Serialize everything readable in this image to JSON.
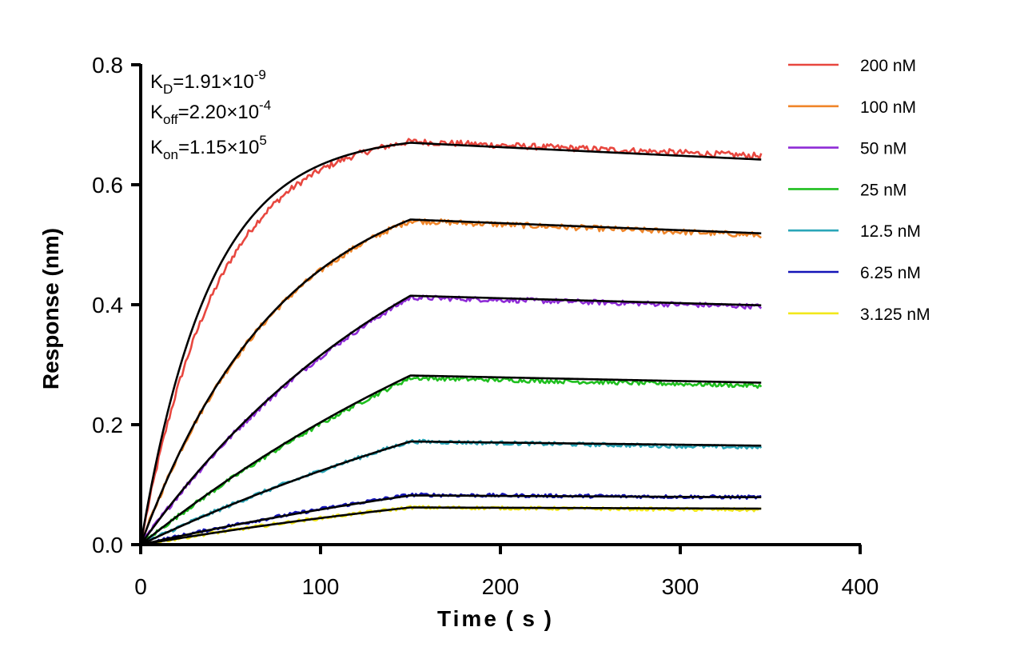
{
  "chart_data": {
    "type": "line",
    "xlabel": "Time ( s )",
    "ylabel": "Response (nm)",
    "xlim": [
      0,
      400
    ],
    "ylim": [
      0,
      0.8
    ],
    "x_ticks": [
      0,
      100,
      200,
      300,
      400
    ],
    "y_ticks": [
      0.0,
      0.2,
      0.4,
      0.6,
      0.8
    ],
    "x_tick_labels": [
      "0",
      "100",
      "200",
      "300",
      "400"
    ],
    "y_tick_labels": [
      "0.0",
      "0.2",
      "0.4",
      "0.6",
      "0.8"
    ],
    "grid": false,
    "legend_position": "top-right",
    "association_end_s": 150,
    "end_time_s": 345,
    "annotations": {
      "kd": {
        "label": "K",
        "sub": "D",
        "value": "=1.91×10",
        "exp": "-9"
      },
      "koff": {
        "label": "K",
        "sub": "off",
        "value": "=2.20×10",
        "exp": "-4"
      },
      "kon": {
        "label": "K",
        "sub": "on",
        "value": "=1.15×10",
        "exp": "5"
      }
    },
    "series": [
      {
        "name": "200 nM",
        "color": "#e8473f",
        "k_obs": 0.023,
        "r_max_end": 0.672,
        "r_end": 0.648,
        "fit_k_obs": 0.026,
        "fit_r_end_assoc": 0.67,
        "fit_r_final": 0.642
      },
      {
        "name": "100 nM",
        "color": "#f0862a",
        "k_obs": 0.0128,
        "r_max_end": 0.54,
        "r_end": 0.516,
        "fit_k_obs": 0.0128,
        "fit_r_end_assoc": 0.542,
        "fit_r_final": 0.519
      },
      {
        "name": "50 nM",
        "color": "#8e2bd6",
        "k_obs": 0.006,
        "r_max_end": 0.412,
        "r_end": 0.397,
        "fit_k_obs": 0.006,
        "fit_r_end_assoc": 0.415,
        "fit_r_final": 0.399
      },
      {
        "name": "25 nM",
        "color": "#1fbf1f",
        "k_obs": 0.0035,
        "r_max_end": 0.278,
        "r_end": 0.265,
        "fit_k_obs": 0.0035,
        "fit_r_end_assoc": 0.282,
        "fit_r_final": 0.27
      },
      {
        "name": "12.5 nM",
        "color": "#2aa6b8",
        "k_obs": 0.003,
        "r_max_end": 0.172,
        "r_end": 0.162,
        "fit_k_obs": 0.003,
        "fit_r_end_assoc": 0.172,
        "fit_r_final": 0.165
      },
      {
        "name": "6.25 nM",
        "color": "#1414b8",
        "k_obs": 0.0029,
        "r_max_end": 0.083,
        "r_end": 0.079,
        "fit_k_obs": 0.0029,
        "fit_r_end_assoc": 0.082,
        "fit_r_final": 0.079
      },
      {
        "name": "3.125 nM",
        "color": "#f2e81c",
        "k_obs": 0.0029,
        "r_max_end": 0.062,
        "r_end": 0.058,
        "fit_k_obs": 0.0029,
        "fit_r_end_assoc": 0.062,
        "fit_r_final": 0.06
      }
    ],
    "fit_color": "#000000"
  }
}
